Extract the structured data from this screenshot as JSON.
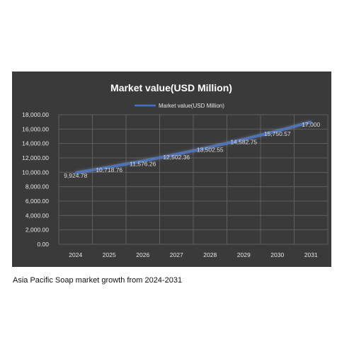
{
  "chart_data": {
    "type": "line",
    "title": "Market value(USD Million)",
    "categories": [
      "2024",
      "2025",
      "2026",
      "2027",
      "2028",
      "2029",
      "2030",
      "2031"
    ],
    "series": [
      {
        "name": "Market value(USD Million)",
        "values": [
          9924.78,
          10718.76,
          11576.26,
          12502.36,
          13502.55,
          14582.75,
          15750.57,
          17000
        ],
        "data_labels": [
          "9,924.78",
          "10,718.76",
          "11,576.26",
          "12,502.36",
          "13,502.55",
          "14,582.75",
          "15,750.57",
          "17,000"
        ]
      }
    ],
    "y_ticks": [
      "0.00",
      "2,000.00",
      "4,000.00",
      "6,000.00",
      "8,000.00",
      "10,000.00",
      "12,000.00",
      "14,000.00",
      "16,000.00",
      "18,000.00"
    ],
    "ylim": [
      0,
      18000
    ],
    "xlabel": "",
    "ylabel": "",
    "grid": true,
    "legend_position": "top",
    "colors": {
      "background": "#3a3a3a",
      "line": "#4472c4",
      "glow": "#8fb3ff",
      "grid": "#5f5f5f"
    }
  },
  "caption": "Asia Pacific Soap market growth from 2024-2031"
}
